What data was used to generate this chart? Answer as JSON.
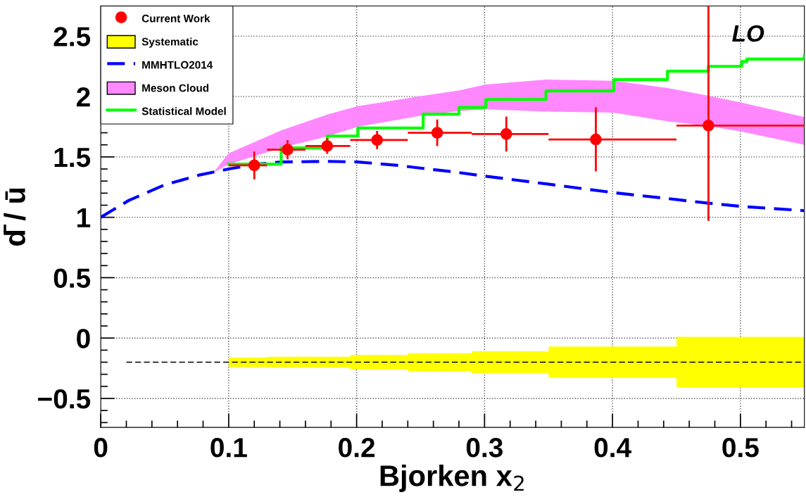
{
  "chart_data": {
    "type": "scatter",
    "xlabel": "Bjorken x$_{2}$",
    "ylabel": "d̄ / ū",
    "xlim": [
      0,
      0.55
    ],
    "xticks": [
      0,
      0.1,
      0.2,
      0.3,
      0.4,
      0.5
    ],
    "ylim": [
      -0.74,
      2.75
    ],
    "yticks": [
      {
        "value": -0.5,
        "label": "−0.5"
      },
      0,
      0.5,
      1,
      1.5,
      2,
      2.5
    ],
    "grid": true,
    "legend": "top left",
    "annotations": [
      "LO"
    ],
    "series": [
      {
        "name": "Current Work",
        "color": "#ff0000",
        "marker": "circle",
        "x": [
          0.12,
          0.146,
          0.177,
          0.216,
          0.263,
          0.317,
          0.387,
          0.475
        ],
        "values": [
          1.43,
          1.56,
          1.59,
          1.64,
          1.7,
          1.69,
          1.645,
          1.76
        ],
        "errors": [
          [
            1.315,
            1.545
          ],
          [
            1.48,
            1.64
          ],
          [
            1.525,
            1.655
          ],
          [
            1.565,
            1.715
          ],
          [
            1.59,
            1.81
          ],
          [
            1.545,
            1.835
          ],
          [
            1.38,
            1.91
          ],
          [
            0.97,
            2.75
          ]
        ],
        "xerrors": [
          [
            0.1,
            0.13
          ],
          [
            0.13,
            0.16
          ],
          [
            0.16,
            0.195
          ],
          [
            0.195,
            0.24
          ],
          [
            0.24,
            0.29
          ],
          [
            0.29,
            0.35
          ],
          [
            0.35,
            0.45
          ],
          [
            0.45,
            0.55
          ]
        ]
      },
      {
        "name": "Systematic",
        "type": "area",
        "color": "#ffff00",
        "x": [
          0.1,
          0.13,
          0.13,
          0.16,
          0.16,
          0.195,
          0.195,
          0.24,
          0.24,
          0.29,
          0.29,
          0.35,
          0.35,
          0.45,
          0.45,
          0.55
        ],
        "values": [
          null,
          null,
          null,
          null,
          null,
          null,
          null,
          null,
          null,
          null,
          null,
          null,
          null,
          null,
          null,
          null
        ],
        "lower": [
          -0.24,
          -0.24,
          -0.245,
          -0.245,
          -0.245,
          -0.245,
          -0.26,
          -0.26,
          -0.275,
          -0.275,
          -0.29,
          -0.29,
          -0.33,
          -0.33,
          -0.41,
          -0.41
        ],
        "upper": [
          -0.16,
          -0.16,
          -0.155,
          -0.155,
          -0.155,
          -0.155,
          -0.14,
          -0.14,
          -0.125,
          -0.125,
          -0.11,
          -0.11,
          -0.07,
          -0.07,
          0.01,
          0.01
        ]
      },
      {
        "name": "MMHTLO2014",
        "type": "line",
        "color": "#0000ff",
        "line_style": "dashed",
        "x": [
          0,
          0.022,
          0.049,
          0.077,
          0.1,
          0.122,
          0.141,
          0.177,
          0.201,
          0.232,
          0.252,
          0.276,
          0.301,
          0.348,
          0.401,
          0.443,
          0.475,
          0.501,
          0.55
        ],
        "values": [
          1.0,
          1.14,
          1.265,
          1.35,
          1.4,
          1.44,
          1.458,
          1.463,
          1.458,
          1.43,
          1.405,
          1.376,
          1.34,
          1.277,
          1.204,
          1.155,
          1.117,
          1.09,
          1.055
        ]
      },
      {
        "name": "Meson Cloud",
        "type": "area",
        "color": "#ff88ff",
        "x": [
          0.088,
          0.1,
          0.141,
          0.177,
          0.201,
          0.252,
          0.28,
          0.301,
          0.348,
          0.401,
          0.443,
          0.475,
          0.501,
          0.55
        ],
        "values": [
          null,
          null,
          null,
          null,
          null,
          null,
          null,
          null,
          null,
          null,
          null,
          null,
          null,
          null
        ],
        "lower": [
          1.37,
          1.44,
          1.575,
          1.67,
          1.75,
          1.845,
          1.88,
          1.895,
          1.875,
          1.866,
          1.795,
          1.755,
          1.71,
          1.6
        ],
        "upper": [
          1.37,
          1.53,
          1.72,
          1.85,
          1.92,
          2.006,
          2.05,
          2.1,
          2.14,
          2.13,
          2.07,
          2.006,
          1.95,
          1.83
        ]
      },
      {
        "name": "Statistical Model",
        "type": "step",
        "color": "#00ff00",
        "x": [
          0.1,
          0.141,
          0.177,
          0.201,
          0.252,
          0.28,
          0.301,
          0.348,
          0.401,
          0.443,
          0.475,
          0.501,
          0.505,
          0.55
        ],
        "values": [
          1.44,
          1.574,
          1.673,
          1.74,
          1.854,
          1.91,
          1.976,
          2.047,
          2.14,
          2.21,
          2.25,
          2.29,
          2.31,
          2.34
        ]
      },
      {
        "type": "line",
        "color": "#000000",
        "line_style": "dashed",
        "x": [
          0.02,
          0.55
        ],
        "values": [
          -0.2,
          -0.2
        ]
      }
    ]
  }
}
